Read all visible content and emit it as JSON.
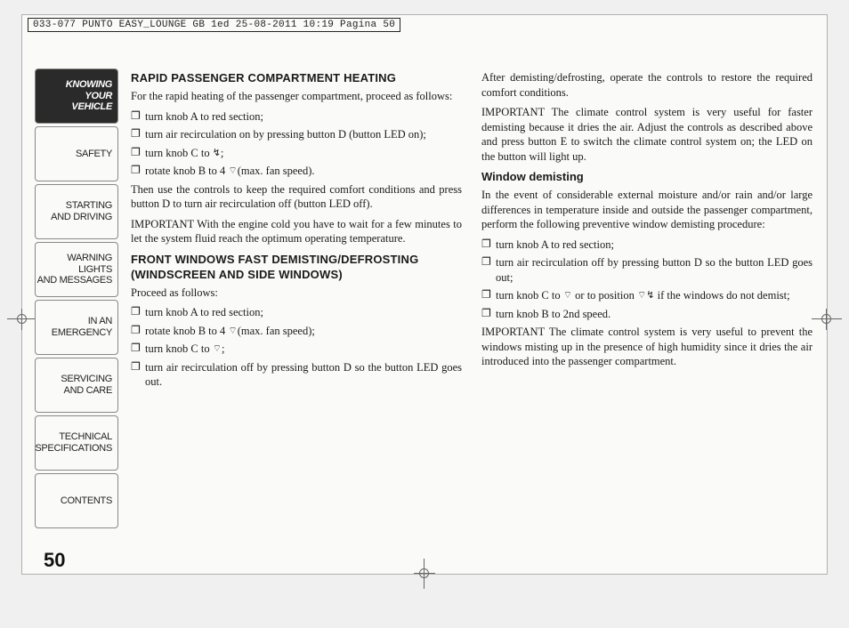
{
  "headerStamp": "033-077 PUNTO EASY_LOUNGE GB 1ed  25-08-2011  10:19  Pagina 50",
  "pageNumber": "50",
  "sidebar": {
    "items": [
      {
        "lines": [
          "KNOWING",
          "YOUR",
          "VEHICLE"
        ],
        "active": true
      },
      {
        "lines": [
          "SAFETY"
        ],
        "active": false
      },
      {
        "lines": [
          "STARTING",
          "AND DRIVING"
        ],
        "active": false
      },
      {
        "lines": [
          "WARNING LIGHTS",
          "AND MESSAGES"
        ],
        "active": false
      },
      {
        "lines": [
          "IN AN",
          "EMERGENCY"
        ],
        "active": false
      },
      {
        "lines": [
          "SERVICING",
          "AND CARE"
        ],
        "active": false
      },
      {
        "lines": [
          "TECHNICAL",
          "SPECIFICATIONS"
        ],
        "active": false
      },
      {
        "lines": [
          "CONTENTS"
        ],
        "active": false
      }
    ]
  },
  "col1": {
    "heading1": "RAPID PASSENGER COMPARTMENT HEATING",
    "p1": "For the rapid heating of the passenger compartment, pro­ceed as follows:",
    "b1": "turn knob A to red section;",
    "b2": "turn air recirculation on by pressing button D (button LED on);",
    "b3a": "turn knob C to ",
    "b3icon": "↯",
    "b3b": ";",
    "b4a": "rotate knob B to 4 ",
    "b4icon": "⌔",
    "b4b": "(max. fan speed).",
    "p2": "Then use the controls to keep the required comfort con­ditions and press button D to turn air recirculation off (but­ton LED off).",
    "p3": "IMPORTANT With the engine cold you have to wait for a few minutes to let the system fluid reach the optimum operating temperature.",
    "heading2": "FRONT WINDOWS FAST DEMISTING/DEFROSTING (WINDSCREEN AND SIDE WINDOWS)",
    "p4": "Proceed as follows:",
    "b5": "turn knob A to red section;",
    "b6a": "rotate knob B to 4 ",
    "b6icon": "⌔",
    "b6b": "(max. fan speed);",
    "b7a": "turn knob C to ",
    "b7icon": "⌔",
    "b7b": ";",
    "b8": "turn air recirculation off by pressing button D so the button LED goes out."
  },
  "col2": {
    "p1": "After demisting/defrosting, operate the controls to restore the required comfort conditions.",
    "p2": "IMPORTANT The climate control system is very useful for faster demisting because it dries the air. Adjust the con­trols as described above and press button E to switch the climate control system on; the LED on the button will light up.",
    "heading1": "Window demisting",
    "p3": "In the event of considerable external moisture and/or rain and/or large differences in temperature inside and outside the passenger compartment, perform the following pre­ventive window demisting procedure:",
    "b1": "turn knob A to red section;",
    "b2": "turn air recirculation off by pressing button D so the button LED goes out;",
    "b3a": "turn knob C to ",
    "b3icon1": "⌔",
    "b3b": " or to position ",
    "b3icon2": "⌔↯",
    "b3c": " if the windows do not demist;",
    "b4": "turn knob B to 2nd speed.",
    "p4": "IMPORTANT The climate control system is very useful to prevent the windows misting up in the presence of high humidity since it dries the air introduced into the passen­ger compartment."
  },
  "bulletMark": "❐"
}
